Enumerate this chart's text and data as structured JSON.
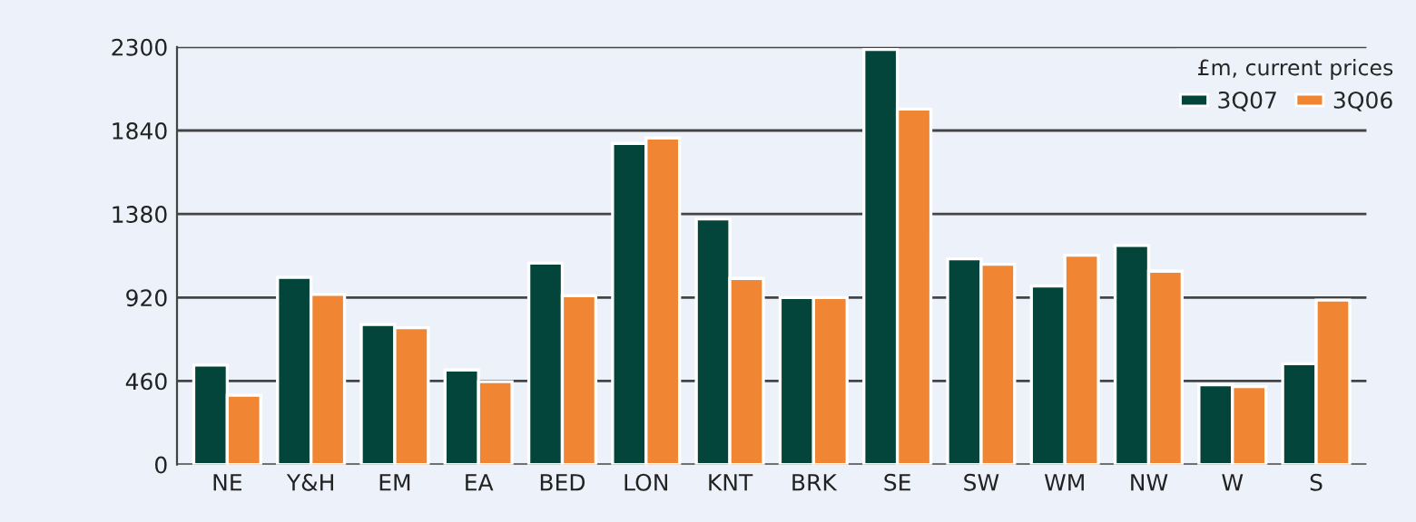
{
  "chart_data": {
    "type": "bar",
    "categories": [
      "NE",
      "Y&H",
      "EM",
      "EA",
      "BED",
      "LON",
      "KNT",
      "BRK",
      "SE",
      "SW",
      "WM",
      "NW",
      "W",
      "S"
    ],
    "series": [
      {
        "name": "3Q07",
        "color": "#03453a",
        "values": [
          548,
          1031,
          771,
          521,
          1109,
          1769,
          1353,
          920,
          2286,
          1133,
          984,
          1207,
          440,
          555
        ]
      },
      {
        "name": "3Q06",
        "color": "#f08533",
        "values": [
          382,
          937,
          754,
          457,
          930,
          1799,
          1025,
          920,
          1958,
          1103,
          1153,
          1065,
          429,
          906
        ]
      }
    ],
    "legend_title": "£m, current prices",
    "legend": "top right",
    "ylim": [
      0,
      2300
    ],
    "yticks": [
      0,
      460,
      920,
      1380,
      1840,
      2300
    ],
    "grid": "y"
  }
}
